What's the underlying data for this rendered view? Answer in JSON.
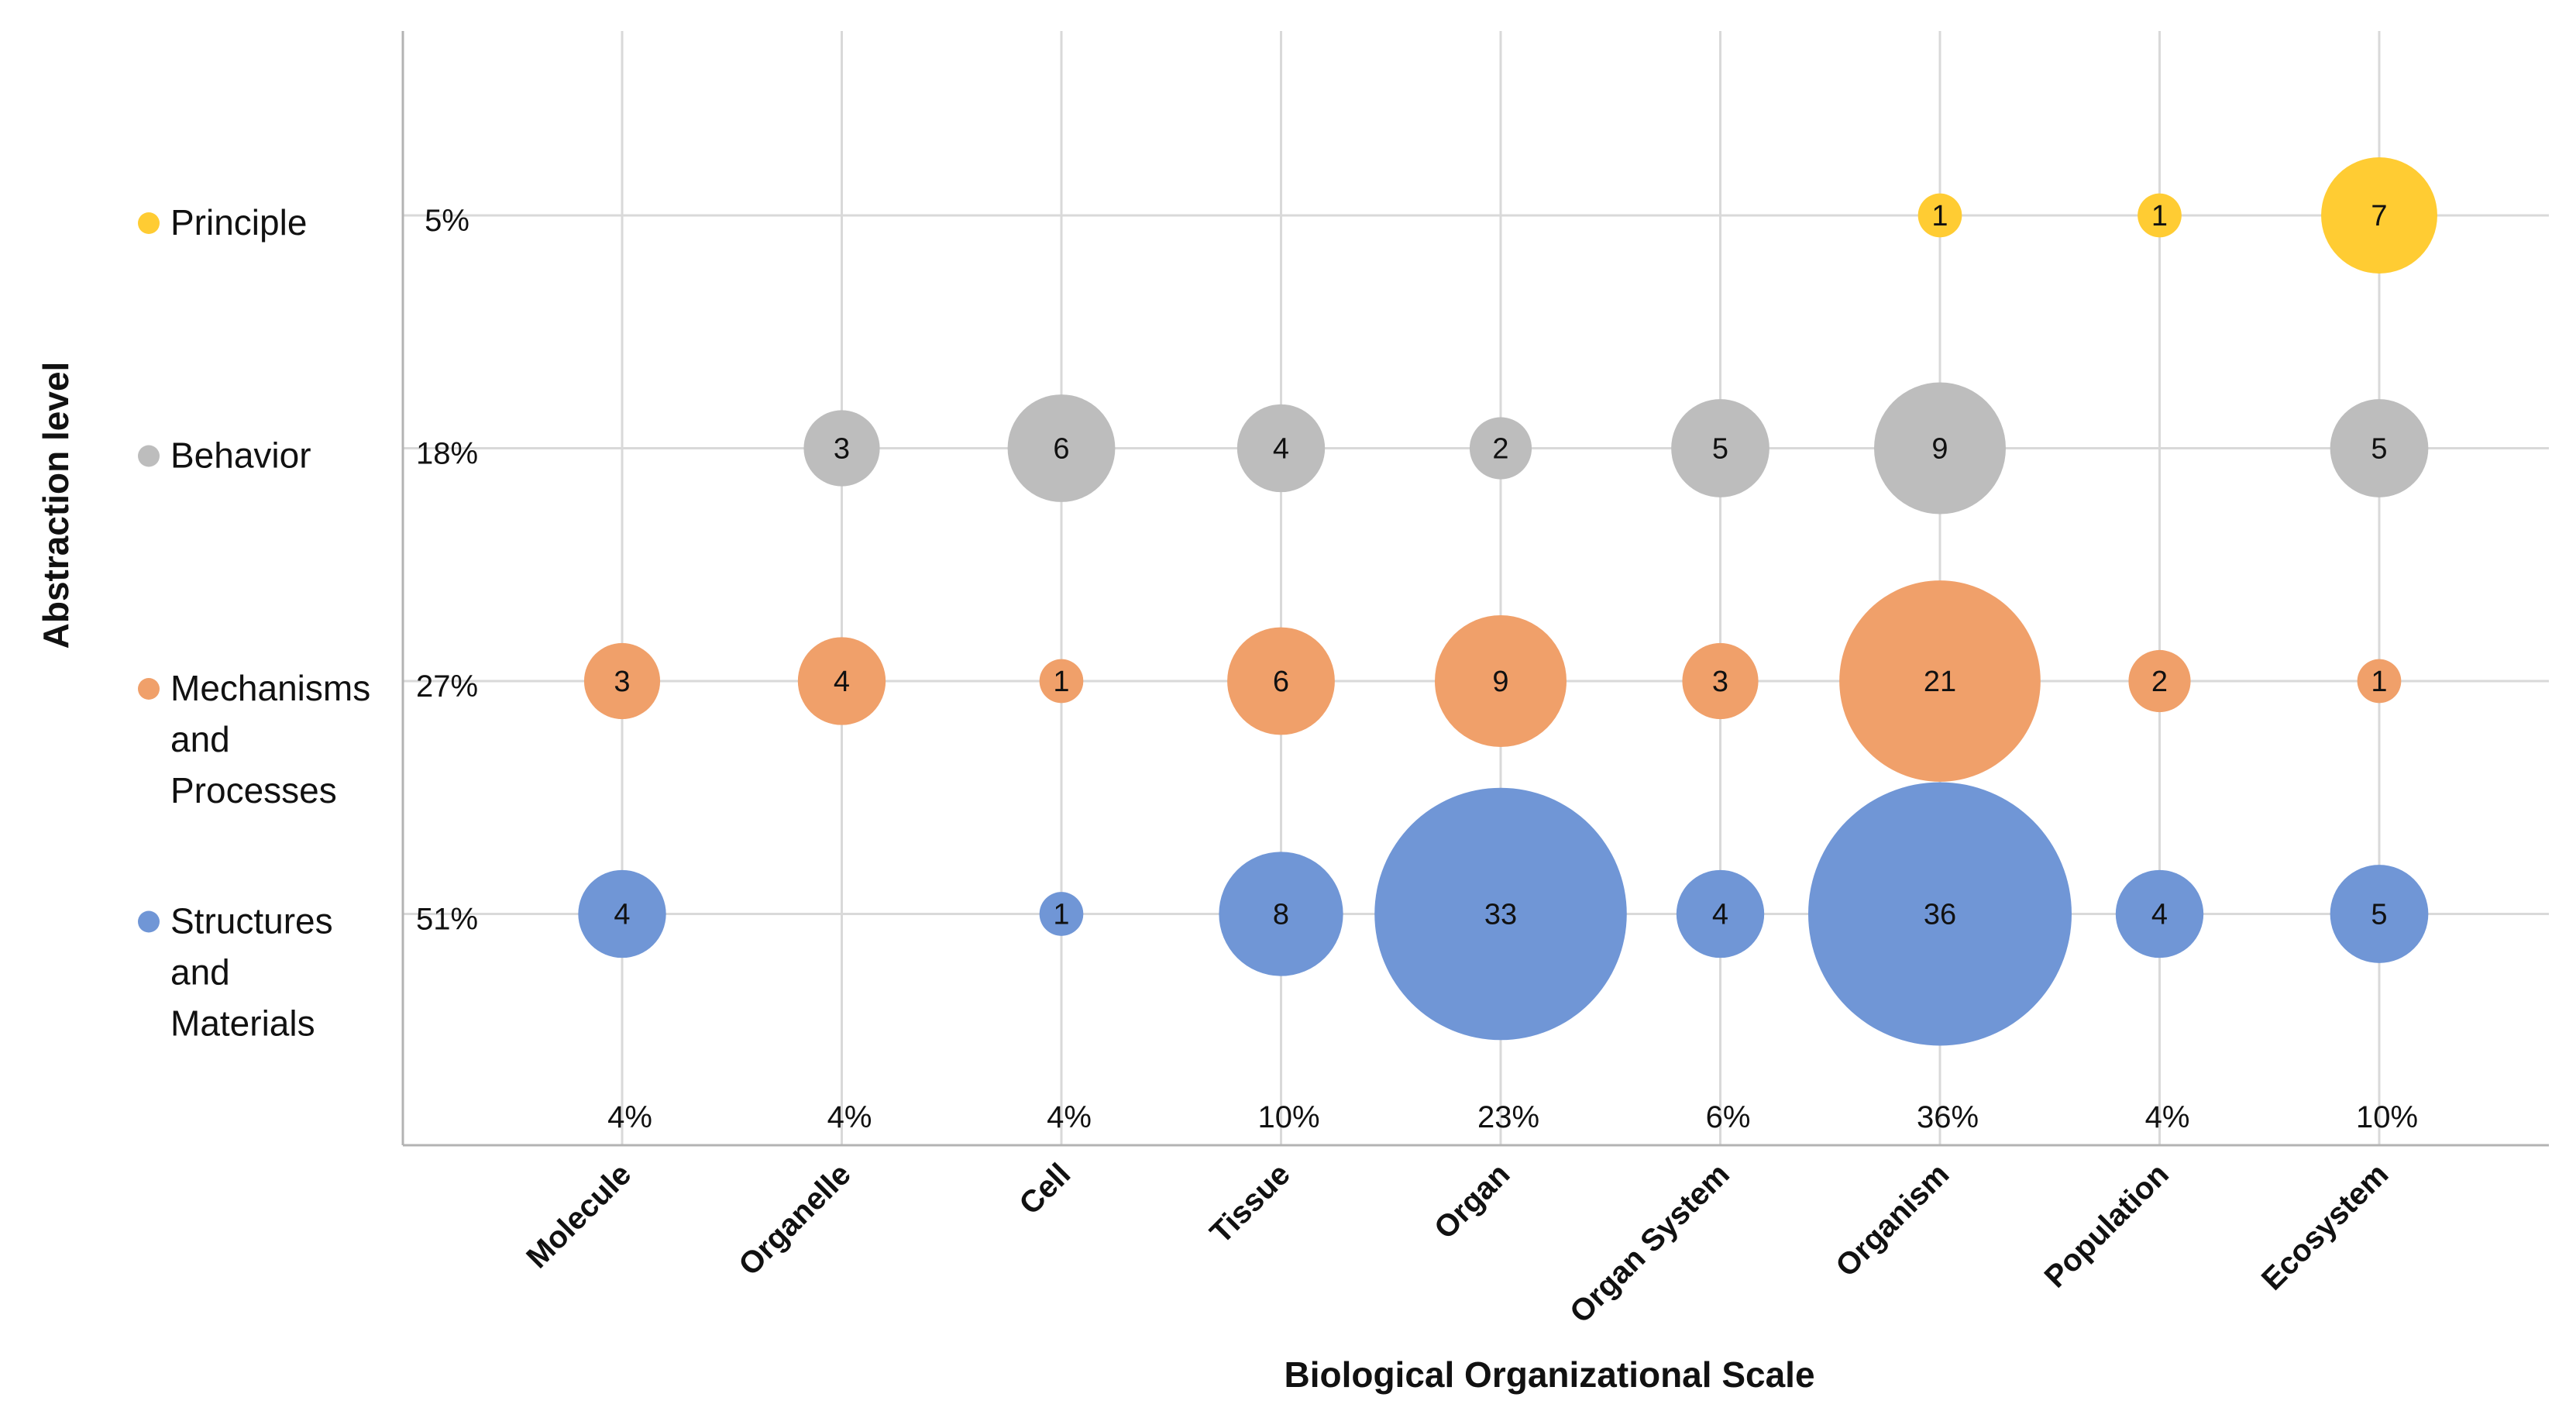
{
  "chart_data": {
    "type": "bubble",
    "title": "",
    "xlabel": "Biological Organizational Scale",
    "ylabel": "Abstraction level",
    "grid": true,
    "legend_position": "left",
    "categories": [
      "Molecule",
      "Organelle",
      "Cell",
      "Tissue",
      "Organ",
      "Organ System",
      "Organism",
      "Population",
      "Ecosystem"
    ],
    "category_percentages": [
      "4%",
      "4%",
      "4%",
      "10%",
      "23%",
      "6%",
      "36%",
      "4%",
      "10%"
    ],
    "series": [
      {
        "name": "Principle",
        "legend_lines": [
          "Principle"
        ],
        "share": "5%",
        "color": "#FFCC33",
        "values": [
          null,
          null,
          null,
          null,
          null,
          null,
          1,
          1,
          7
        ]
      },
      {
        "name": "Behavior",
        "legend_lines": [
          "Behavior"
        ],
        "share": "18%",
        "color": "#BDBDBD",
        "values": [
          null,
          3,
          6,
          4,
          2,
          5,
          9,
          null,
          5
        ]
      },
      {
        "name": "Mechanisms and Processes",
        "legend_lines": [
          "Mechanisms",
          "and",
          "Processes"
        ],
        "share": "27%",
        "color": "#F0A06A",
        "values": [
          3,
          4,
          1,
          6,
          9,
          3,
          21,
          2,
          1
        ]
      },
      {
        "name": "Structures and Materials",
        "legend_lines": [
          "Structures",
          "and",
          "Materials"
        ],
        "share": "51%",
        "color": "#7096D6",
        "values": [
          4,
          null,
          1,
          8,
          33,
          4,
          36,
          4,
          5
        ]
      }
    ]
  }
}
